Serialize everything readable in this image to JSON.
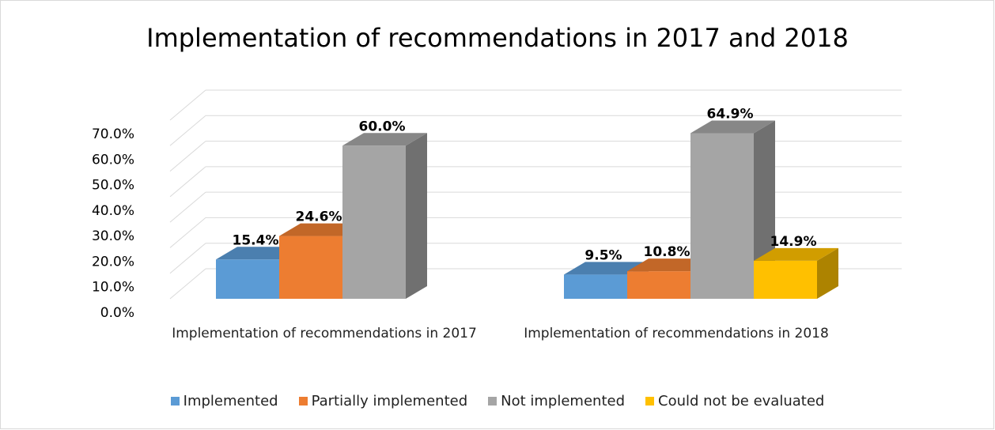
{
  "chart_data": {
    "type": "bar3d",
    "title": "Implementation of recommendations in 2017 and 2018",
    "categories": [
      "Implementation of recommendations in 2017",
      "Implementation of recommendations in 2018"
    ],
    "series": [
      {
        "name": "Implemented",
        "color": "#5b9bd5",
        "values": [
          15.4,
          9.5
        ],
        "value_labels": [
          "15.4%",
          "9.5%"
        ]
      },
      {
        "name": "Partially implemented",
        "color": "#ed7d31",
        "values": [
          24.6,
          10.8
        ],
        "value_labels": [
          "24.6%",
          "10.8%"
        ]
      },
      {
        "name": "Not implemented",
        "color": "#a5a5a5",
        "values": [
          60.0,
          64.9
        ],
        "value_labels": [
          "60.0%",
          "64.9%"
        ]
      },
      {
        "name": "Could not be evaluated",
        "color": "#ffc000",
        "values": [
          null,
          14.9
        ],
        "value_labels": [
          null,
          "14.9%"
        ]
      }
    ],
    "ylim": [
      0,
      70
    ],
    "yticks": [
      {
        "value": 0,
        "label": "0.0%"
      },
      {
        "value": 10,
        "label": "10.0%"
      },
      {
        "value": 20,
        "label": "20.0%"
      },
      {
        "value": 30,
        "label": "30.0%"
      },
      {
        "value": 40,
        "label": "40.0%"
      },
      {
        "value": 50,
        "label": "50.0%"
      },
      {
        "value": 60,
        "label": "60.0%"
      },
      {
        "value": 70,
        "label": "70.0%"
      }
    ],
    "grid": true,
    "legend": "bottom"
  }
}
